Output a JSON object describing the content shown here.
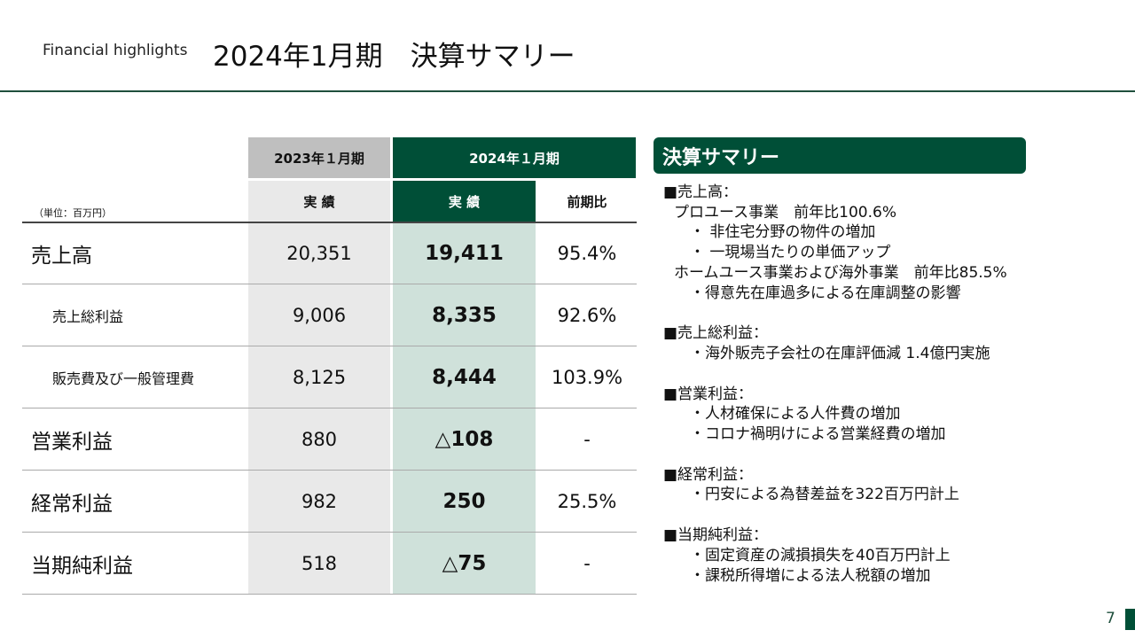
{
  "header": {
    "subtitle": "Financial highlights",
    "title": "2024年1月期　決算サマリー"
  },
  "table": {
    "unit": "（単位：百万円）",
    "period_prev": "2023年１月期",
    "period_cur": "2024年１月期",
    "col_prev": "実 績",
    "col_cur": "実 績",
    "col_ratio": "前期比",
    "rows": [
      {
        "label": "売上高",
        "prev": "20,351",
        "cur": "19,411",
        "ratio": "95.4%"
      },
      {
        "label": "売上総利益",
        "prev": "9,006",
        "cur": "8,335",
        "ratio": "92.6%"
      },
      {
        "label": "販売費及び一般管理費",
        "prev": "8,125",
        "cur": "8,444",
        "ratio": "103.9%"
      },
      {
        "label": "営業利益",
        "prev": "880",
        "cur": "△108",
        "ratio": "-"
      },
      {
        "label": "経常利益",
        "prev": "982",
        "cur": "250",
        "ratio": "25.5%"
      },
      {
        "label": "当期純利益",
        "prev": "518",
        "cur": "△75",
        "ratio": "-"
      }
    ]
  },
  "summary": {
    "title": "決算サマリー",
    "sections": [
      {
        "heading": "■売上高：",
        "lines": [
          "プロユース事業　前年比100.6%",
          "・ 非住宅分野の物件の増加",
          "・ 一現場当たりの単価アップ",
          "ホームユース事業および海外事業　前年比85.5%",
          "・得意先在庫過多による在庫調整の影響"
        ]
      },
      {
        "heading": "■売上総利益：",
        "lines": [
          "・海外販売子会社の在庫評価減 1.4億円実施"
        ]
      },
      {
        "heading": "■営業利益：",
        "lines": [
          "・人材確保による人件費の増加",
          "・コロナ禍明けによる営業経費の増加"
        ]
      },
      {
        "heading": "■経常利益：",
        "lines": [
          "・円安による為替差益を322百万円計上"
        ]
      },
      {
        "heading": "■当期純利益：",
        "lines": [
          "・固定資産の減損損失を40百万円計上",
          "・課税所得増による法人税額の増加"
        ]
      }
    ]
  },
  "page_number": "7",
  "colors": {
    "brand_green": "#004f37",
    "light_green": "#cfe1da",
    "gray": "#e9e9e9"
  }
}
